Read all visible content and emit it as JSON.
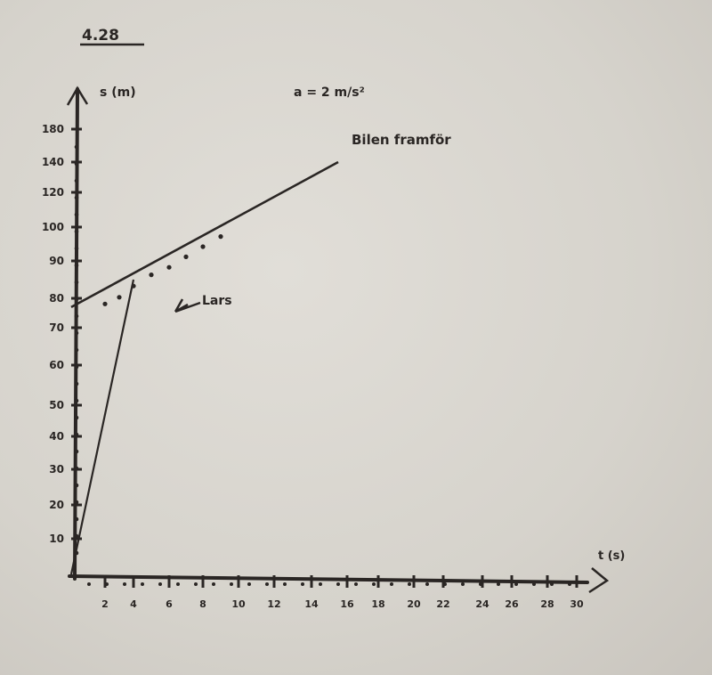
{
  "problem_number": "4.28",
  "chart_data": {
    "type": "line",
    "title": "",
    "xlabel": "t (s)",
    "ylabel": "s (m)",
    "annotation": "a = 2 m/s²",
    "xlim": [
      0,
      30
    ],
    "ylim": [
      0,
      180
    ],
    "x_ticks": [
      "2",
      "4",
      "6",
      "8",
      "10",
      "12",
      "14",
      "16",
      "18",
      "20",
      "22",
      "24",
      "26",
      "28",
      "30"
    ],
    "y_ticks": [
      "180",
      "140",
      "120",
      "100",
      "90",
      "80",
      "70",
      "60",
      "50",
      "40",
      "30",
      "20",
      "10"
    ],
    "grid": false,
    "series": [
      {
        "name": "Bilen framför",
        "x": [
          0,
          15.5
        ],
        "y": [
          77,
          140
        ]
      },
      {
        "name": "Lars",
        "x": [
          0,
          4
        ],
        "y": [
          0,
          85
        ]
      }
    ],
    "points": {
      "x": [
        2,
        3,
        4,
        5,
        6,
        7,
        8,
        9
      ],
      "y": [
        79,
        81,
        84,
        87,
        89,
        92,
        95,
        98
      ]
    }
  },
  "ink_color": "#2a2624"
}
